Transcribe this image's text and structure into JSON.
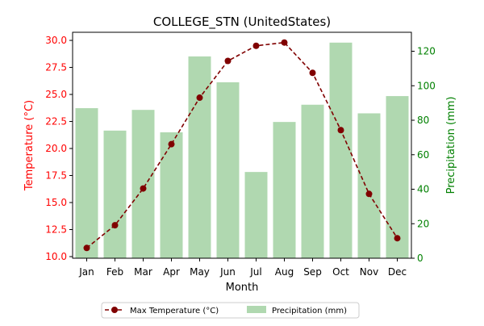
{
  "chart_data": {
    "type": "bar+line",
    "title": "COLLEGE_STN (UnitedStates)",
    "xlabel": "Month",
    "categories": [
      "Jan",
      "Feb",
      "Mar",
      "Apr",
      "May",
      "Jun",
      "Jul",
      "Aug",
      "Sep",
      "Oct",
      "Nov",
      "Dec"
    ],
    "left_axis": {
      "label": "Temperature (°C)",
      "color": "#ff0000",
      "ylim": [
        9.85,
        30.75
      ],
      "ticks": [
        10.0,
        12.5,
        15.0,
        17.5,
        20.0,
        22.5,
        25.0,
        27.5,
        30.0
      ],
      "tick_labels": [
        "10.0",
        "12.5",
        "15.0",
        "17.5",
        "20.0",
        "22.5",
        "25.0",
        "27.5",
        "30.0"
      ]
    },
    "right_axis": {
      "label": "Precipitation (mm)",
      "color": "#008000",
      "ylim": [
        0,
        131
      ],
      "ticks": [
        0,
        20,
        40,
        60,
        80,
        100,
        120
      ],
      "tick_labels": [
        "0",
        "20",
        "40",
        "60",
        "80",
        "100",
        "120"
      ]
    },
    "series": [
      {
        "name": "Max Temperature (°C)",
        "kind": "line",
        "axis": "left",
        "color": "#800000",
        "line_style": "dashed",
        "marker": "circle",
        "values": [
          10.8,
          12.9,
          16.3,
          20.4,
          24.7,
          28.1,
          29.5,
          29.8,
          27.0,
          21.7,
          15.8,
          11.7
        ]
      },
      {
        "name": "Precipitation (mm)",
        "kind": "bar",
        "axis": "right",
        "color": "#b0d8b0",
        "values": [
          87,
          74,
          86,
          73,
          117,
          102,
          50,
          79,
          89,
          125,
          84,
          94
        ]
      }
    ],
    "legend": {
      "placement": "bottom-center",
      "items": [
        "Max Temperature (°C)",
        "Precipitation (mm)"
      ]
    },
    "grid": false
  }
}
